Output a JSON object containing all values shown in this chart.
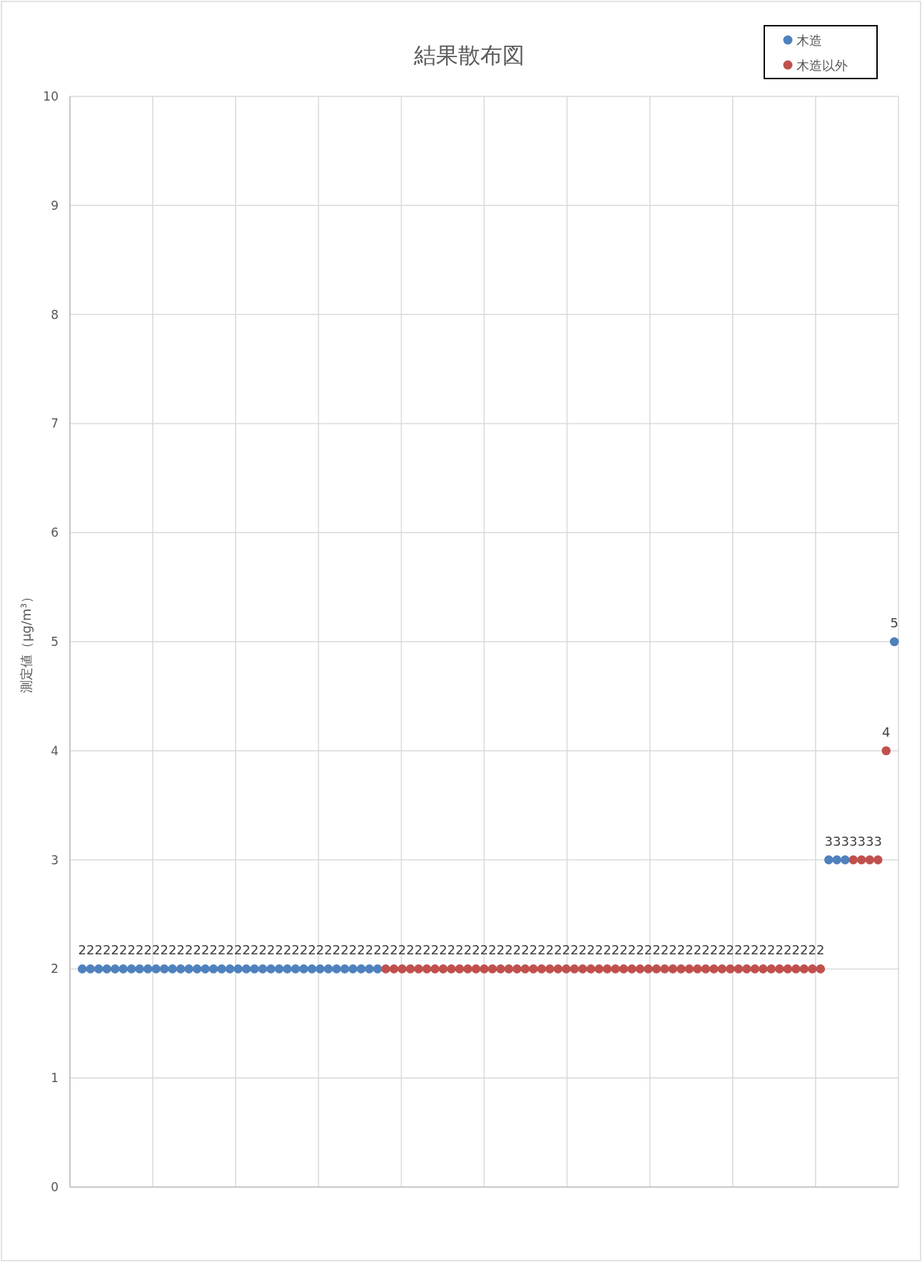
{
  "chart_data": {
    "type": "scatter",
    "title": "結果散布図",
    "ylabel": "測定値（μg/m³）",
    "categories": [
      null,
      null,
      null,
      null,
      null,
      null,
      null,
      null,
      null,
      null,
      null,
      null,
      null,
      null,
      null,
      null,
      null,
      null,
      null,
      null,
      null,
      null,
      null,
      null,
      null,
      null,
      null,
      null,
      null,
      null,
      null,
      null,
      null,
      null,
      null,
      null,
      null,
      null,
      null,
      null,
      null,
      null,
      null,
      null,
      null,
      null,
      null,
      null,
      null,
      null,
      null,
      null,
      null,
      null,
      null,
      null,
      null,
      null,
      null,
      null,
      null,
      null,
      null,
      null,
      null,
      null,
      null,
      null,
      null,
      null,
      null,
      null,
      null,
      null,
      null,
      null,
      null,
      null,
      null,
      null,
      null,
      null,
      null,
      null,
      null,
      null,
      null,
      null,
      null,
      null,
      null,
      null,
      null,
      null,
      null,
      null,
      null,
      null,
      null,
      null,
      null
    ],
    "series": [
      {
        "name": "木造",
        "color": "#4f81bd",
        "values": [
          null,
          2,
          2,
          2,
          2,
          2,
          2,
          2,
          2,
          2,
          2,
          2,
          2,
          2,
          2,
          2,
          2,
          2,
          2,
          2,
          2,
          2,
          2,
          2,
          2,
          2,
          2,
          2,
          2,
          2,
          2,
          2,
          2,
          2,
          2,
          2,
          2,
          2,
          null,
          null,
          null,
          null,
          null,
          null,
          null,
          null,
          null,
          null,
          null,
          null,
          null,
          null,
          null,
          null,
          null,
          null,
          null,
          null,
          null,
          null,
          null,
          null,
          null,
          null,
          null,
          null,
          null,
          null,
          null,
          null,
          null,
          null,
          null,
          null,
          null,
          null,
          null,
          null,
          null,
          null,
          null,
          null,
          null,
          null,
          null,
          null,
          null,
          null,
          null,
          null,
          null,
          null,
          3,
          3,
          3,
          null,
          null,
          null,
          null,
          null,
          5
        ]
      },
      {
        "name": "木造以外",
        "color": "#c0504d",
        "values": [
          null,
          null,
          null,
          null,
          null,
          null,
          null,
          null,
          null,
          null,
          null,
          null,
          null,
          null,
          null,
          null,
          null,
          null,
          null,
          null,
          null,
          null,
          null,
          null,
          null,
          null,
          null,
          null,
          null,
          null,
          null,
          null,
          null,
          null,
          null,
          null,
          null,
          null,
          2,
          2,
          2,
          2,
          2,
          2,
          2,
          2,
          2,
          2,
          2,
          2,
          2,
          2,
          2,
          2,
          2,
          2,
          2,
          2,
          2,
          2,
          2,
          2,
          2,
          2,
          2,
          2,
          2,
          2,
          2,
          2,
          2,
          2,
          2,
          2,
          2,
          2,
          2,
          2,
          2,
          2,
          2,
          2,
          2,
          2,
          2,
          2,
          2,
          2,
          2,
          2,
          2,
          2,
          null,
          null,
          null,
          3,
          3,
          3,
          3,
          4,
          null
        ]
      }
    ],
    "ylim": [
      0,
      10
    ],
    "yticks": [
      0,
      1,
      2,
      3,
      4,
      5,
      6,
      7,
      8,
      9,
      10
    ],
    "tick_labels": "y",
    "grid": true,
    "legend": "top right",
    "marker": "circle",
    "data_labels": true
  }
}
